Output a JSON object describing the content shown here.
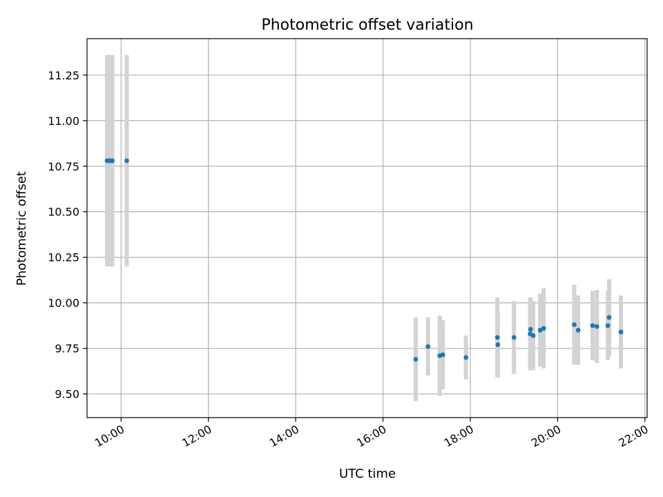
{
  "chart_data": {
    "type": "scatter",
    "title": "Photometric offset variation",
    "xlabel": "UTC time",
    "ylabel": "Photometric offset",
    "x_unit": "hour",
    "xlim": [
      9.22,
      22.05
    ],
    "ylim": [
      9.37,
      11.45
    ],
    "x_ticks": [
      10,
      12,
      14,
      16,
      18,
      20,
      22
    ],
    "x_tick_labels": [
      "10:00",
      "12:00",
      "14:00",
      "16:00",
      "18:00",
      "20:00",
      "22:00"
    ],
    "y_ticks": [
      9.5,
      9.75,
      10.0,
      10.25,
      10.5,
      10.75,
      11.0,
      11.25
    ],
    "y_tick_labels": [
      "9.50",
      "9.75",
      "10.00",
      "10.25",
      "10.50",
      "10.75",
      "11.00",
      "11.25"
    ],
    "grid": true,
    "marker_color": "#1f77b4",
    "errorbar_color": "#d3d3d3",
    "points": [
      {
        "x": 9.68,
        "y": 10.78,
        "yerr": 0.58
      },
      {
        "x": 9.72,
        "y": 10.78,
        "yerr": 0.58
      },
      {
        "x": 9.76,
        "y": 10.78,
        "yerr": 0.58
      },
      {
        "x": 9.8,
        "y": 10.78,
        "yerr": 0.58
      },
      {
        "x": 10.13,
        "y": 10.78,
        "yerr": 0.58
      },
      {
        "x": 16.75,
        "y": 9.69,
        "yerr": 0.23
      },
      {
        "x": 17.03,
        "y": 9.76,
        "yerr": 0.16
      },
      {
        "x": 17.3,
        "y": 9.71,
        "yerr": 0.22
      },
      {
        "x": 17.37,
        "y": 9.715,
        "yerr": 0.19
      },
      {
        "x": 17.9,
        "y": 9.7,
        "yerr": 0.12
      },
      {
        "x": 18.62,
        "y": 9.81,
        "yerr": 0.22
      },
      {
        "x": 18.63,
        "y": 9.77,
        "yerr": 0.18
      },
      {
        "x": 19.0,
        "y": 9.81,
        "yerr": 0.2
      },
      {
        "x": 19.37,
        "y": 9.83,
        "yerr": 0.2
      },
      {
        "x": 19.38,
        "y": 9.855,
        "yerr": 0.175
      },
      {
        "x": 19.44,
        "y": 9.82,
        "yerr": 0.19
      },
      {
        "x": 19.6,
        "y": 9.85,
        "yerr": 0.2
      },
      {
        "x": 19.68,
        "y": 9.86,
        "yerr": 0.22
      },
      {
        "x": 20.38,
        "y": 9.88,
        "yerr": 0.22
      },
      {
        "x": 20.47,
        "y": 9.85,
        "yerr": 0.19
      },
      {
        "x": 20.8,
        "y": 9.875,
        "yerr": 0.19
      },
      {
        "x": 20.9,
        "y": 9.87,
        "yerr": 0.2
      },
      {
        "x": 21.15,
        "y": 9.875,
        "yerr": 0.19
      },
      {
        "x": 21.18,
        "y": 9.92,
        "yerr": 0.21
      },
      {
        "x": 21.45,
        "y": 9.84,
        "yerr": 0.2
      }
    ]
  }
}
